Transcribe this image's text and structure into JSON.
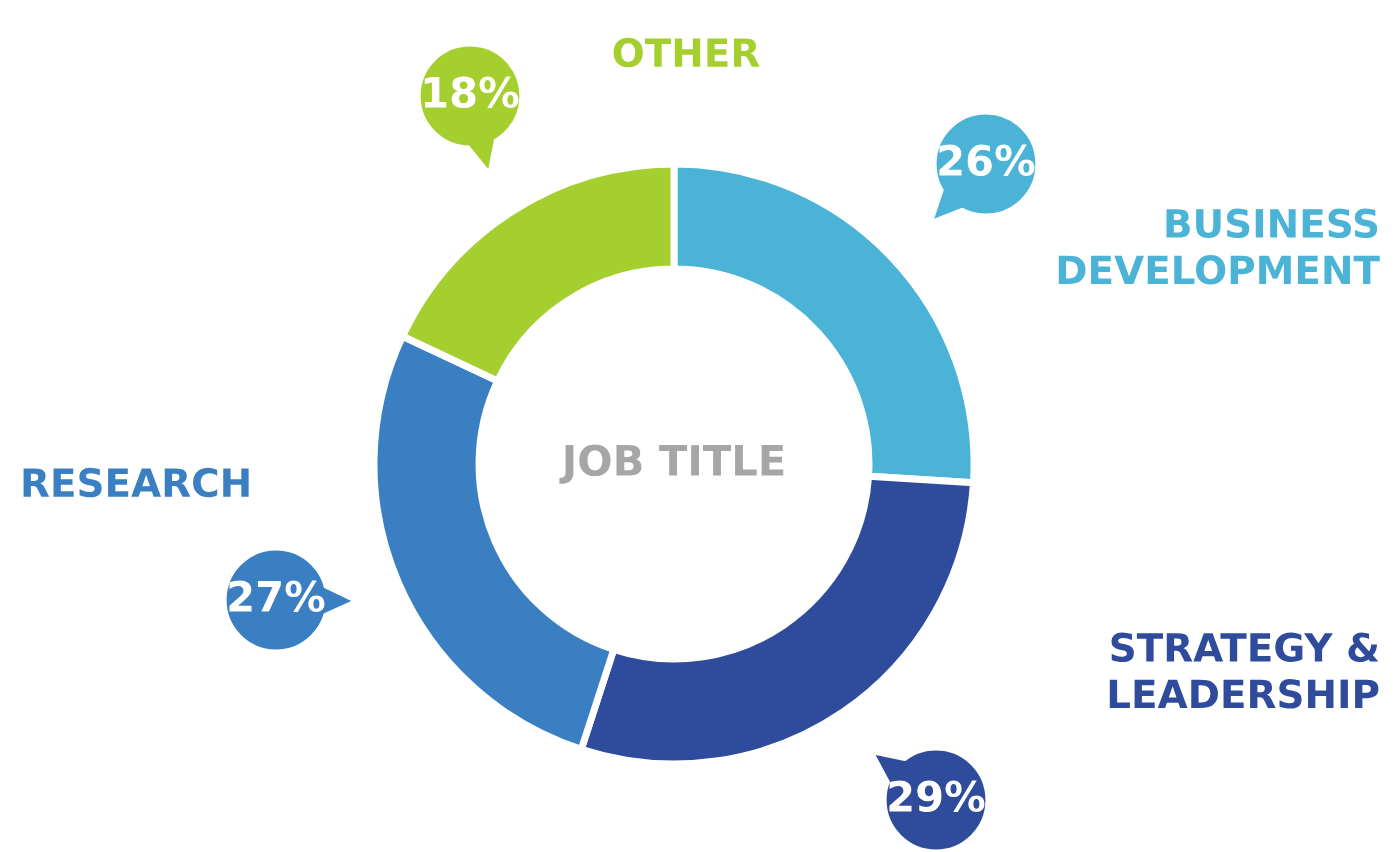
{
  "chart_data": {
    "type": "donut",
    "title": "JOB TITLE",
    "categories": [
      "BUSINESS DEVELOPMENT",
      "STRATEGY & LEADERSHIP",
      "RESEARCH",
      "OTHER"
    ],
    "values": [
      26,
      29,
      27,
      18
    ],
    "colors": [
      "#4ab3d6",
      "#2f4b9b",
      "#3a7fc1",
      "#a5cf2f"
    ],
    "value_labels": [
      "26%",
      "29%",
      "27%",
      "18%"
    ]
  }
}
